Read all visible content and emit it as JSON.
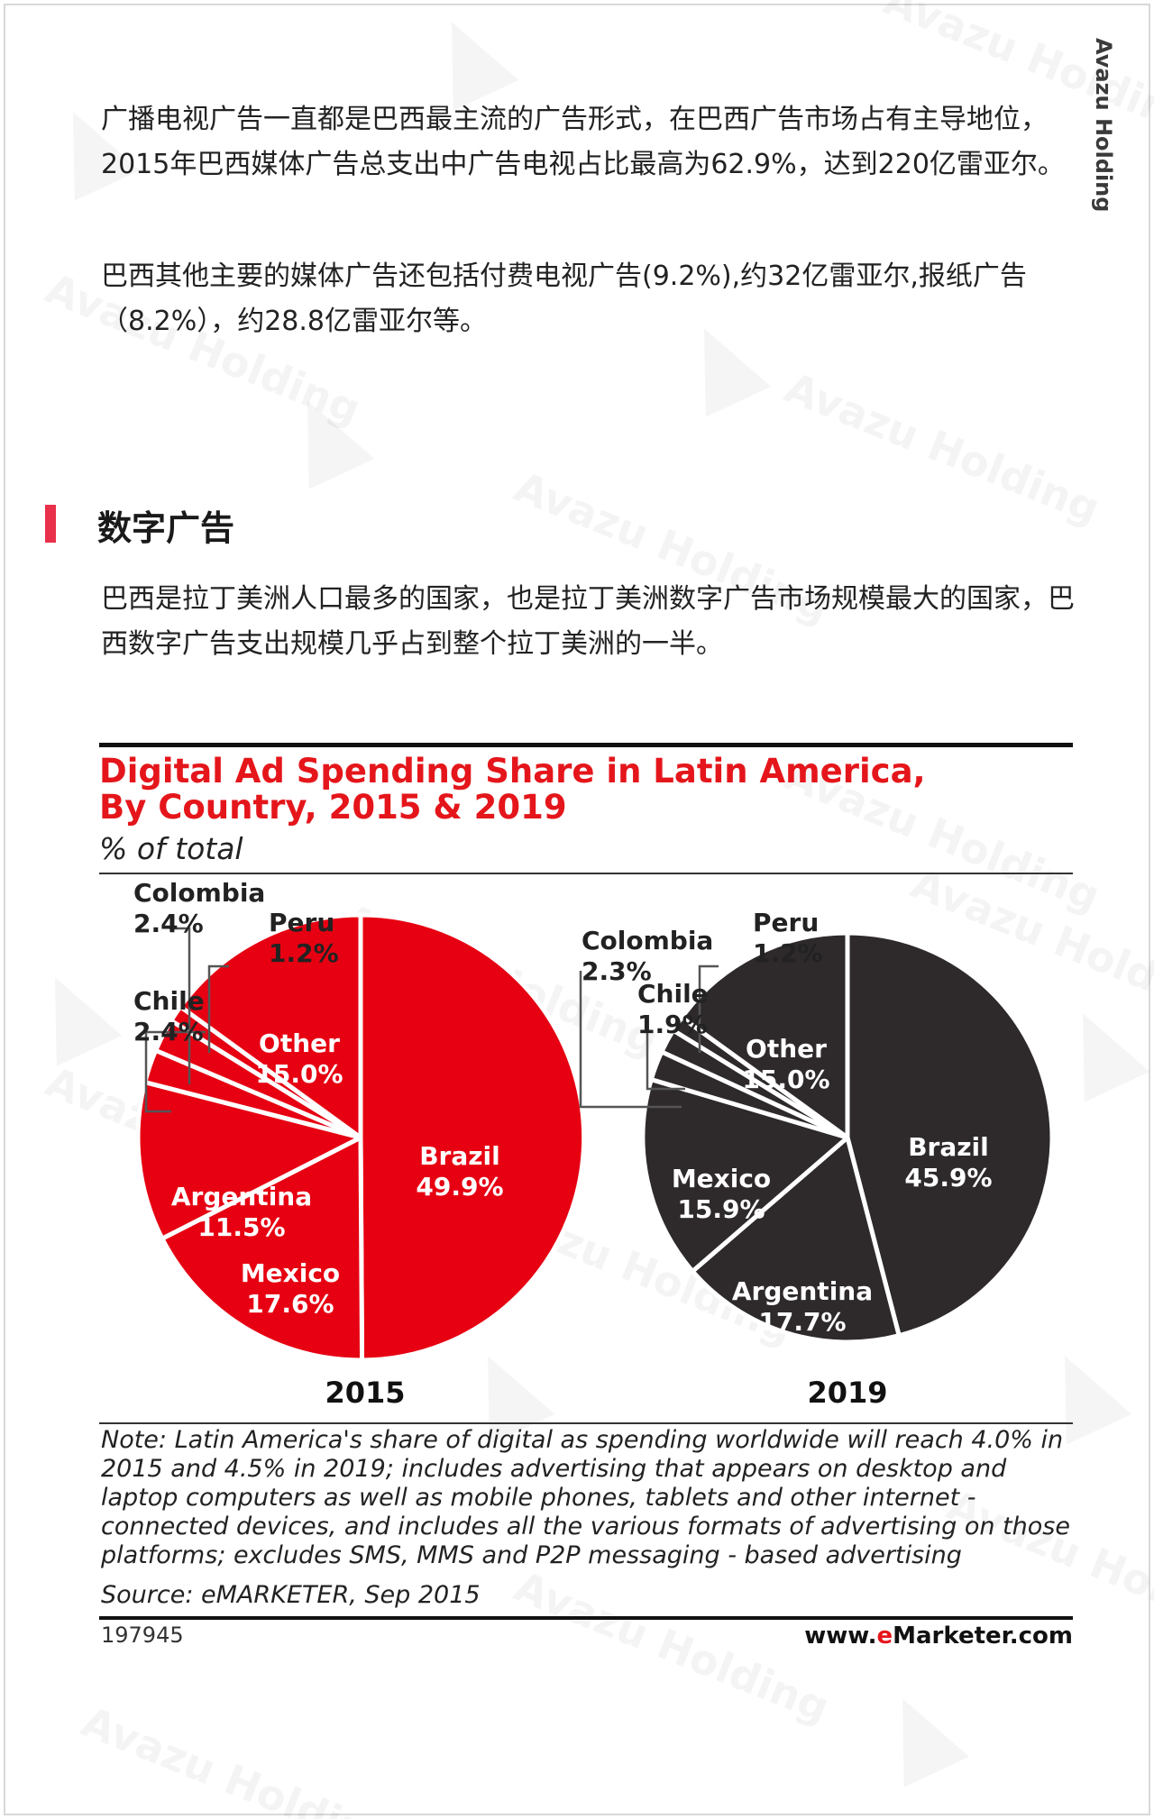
{
  "brand": {
    "side_label": "Avazu Holding",
    "watermark": "Avazu Holding"
  },
  "paragraphs": {
    "p1": "广播电视广告一直都是巴西最主流的广告形式，在巴西广告市场占有主导地位，2015年巴西媒体广告总支出中广告电视占比最高为62.9%，达到220亿雷亚尔。",
    "p2": "巴西其他主要的媒体广告还包括付费电视广告(9.2%),约32亿雷亚尔,报纸广告（8.2%），约28.8亿雷亚尔等。",
    "p3": "巴西是拉丁美洲人口最多的国家，也是拉丁美洲数字广告市场规模最大的国家，巴西数字广告支出规模几乎占到整个拉丁美洲的一半。"
  },
  "section": {
    "title": "数字广告",
    "accent_color": "#e8304a"
  },
  "chart_data": {
    "type": "pie",
    "title_line1": "Digital Ad Spending Share in Latin America,",
    "title_line2": "By Country, 2015 & 2019",
    "subtitle": "% of total",
    "unit": "%",
    "pies": [
      {
        "year": "2015",
        "color": "#e60012",
        "label_color": "#ffffff",
        "slices": [
          {
            "name": "Brazil",
            "value": 49.9,
            "label": "49.9%"
          },
          {
            "name": "Mexico",
            "value": 17.6,
            "label": "17.6%"
          },
          {
            "name": "Argentina",
            "value": 11.5,
            "label": "11.5%"
          },
          {
            "name": "Chile",
            "value": 2.4,
            "label": "2.4%"
          },
          {
            "name": "Colombia",
            "value": 2.4,
            "label": "2.4%"
          },
          {
            "name": "Peru",
            "value": 1.2,
            "label": "1.2%"
          },
          {
            "name": "Other",
            "value": 15.0,
            "label": "15.0%"
          }
        ]
      },
      {
        "year": "2019",
        "color": "#2e2a2b",
        "label_color": "#ffffff",
        "slices": [
          {
            "name": "Brazil",
            "value": 45.9,
            "label": "45.9%"
          },
          {
            "name": "Argentina",
            "value": 17.7,
            "label": "17.7%"
          },
          {
            "name": "Mexico",
            "value": 15.9,
            "label": "15.9%"
          },
          {
            "name": "Colombia",
            "value": 2.3,
            "label": "2.3%"
          },
          {
            "name": "Chile",
            "value": 1.9,
            "label": "1.9%"
          },
          {
            "name": "Peru",
            "value": 1.2,
            "label": "1.2%"
          },
          {
            "name": "Other",
            "value": 15.0,
            "label": "15.0%"
          }
        ]
      }
    ],
    "note": "Note: Latin America's share of digital as spending worldwide will reach 4.0% in 2015 and 4.5% in 2019; includes advertising that appears on desktop and laptop computers as well as mobile phones, tablets and other internet - connected devices, and includes all the various formats of advertising on those platforms; excludes SMS, MMS and P2P messaging - based advertising",
    "source": "Source: eMARKETER, Sep 2015",
    "chart_id": "197945",
    "site_prefix": "www.",
    "site_accent": "e",
    "site_suffix": "Marketer.com"
  }
}
